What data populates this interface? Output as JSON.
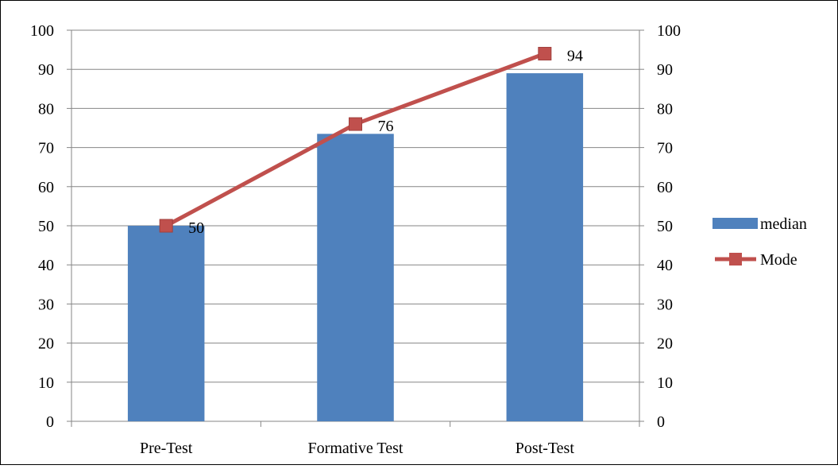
{
  "chart_data": {
    "type": "bar",
    "categories": [
      "Pre-Test",
      "Formative Test",
      "Post-Test"
    ],
    "series": [
      {
        "name": "median",
        "kind": "bar",
        "color": "#4F81BD",
        "values": [
          50,
          73.5,
          89
        ]
      },
      {
        "name": "Mode",
        "kind": "line",
        "color": "#C0504D",
        "marker": "square",
        "values": [
          50,
          76,
          94
        ],
        "data_labels": [
          "50",
          "76",
          "94"
        ]
      }
    ],
    "ylim": [
      0,
      100
    ],
    "yticks": [
      "0",
      "10",
      "20",
      "30",
      "40",
      "50",
      "60",
      "70",
      "80",
      "90",
      "100"
    ],
    "secondary_yticks": [
      "0",
      "10",
      "20",
      "30",
      "40",
      "50",
      "60",
      "70",
      "80",
      "90",
      "100"
    ],
    "grid": true,
    "legend": "right",
    "title": "",
    "xlabel": "",
    "ylabel": ""
  }
}
